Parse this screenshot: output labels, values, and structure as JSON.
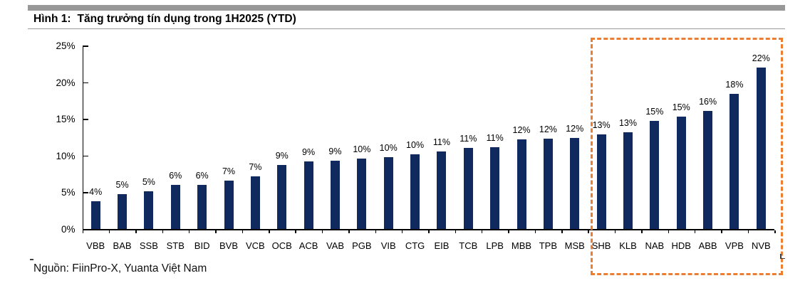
{
  "header": {
    "figure_label": "Hình 1:",
    "title": "Tăng trưởng tín dụng trong 1H2025 (YTD)"
  },
  "source_note": "Nguồn: FiinPro-X, Yuanta Việt Nam",
  "colors": {
    "bar": "#102A5F",
    "highlight": "#ED7D31",
    "header_bar": "#989898",
    "axis": "#000000"
  },
  "chart_data": {
    "type": "bar",
    "title": "Tăng trưởng tín dụng trong 1H2025 (YTD)",
    "xlabel": "",
    "ylabel": "",
    "ylim": [
      0,
      25
    ],
    "ytick_labels": [
      "0%",
      "5%",
      "10%",
      "15%",
      "20%",
      "25%"
    ],
    "grid": false,
    "legend": false,
    "categories": [
      "VBB",
      "BAB",
      "SSB",
      "STB",
      "BID",
      "BVB",
      "VCB",
      "OCB",
      "ACB",
      "VAB",
      "PGB",
      "VIB",
      "CTG",
      "EIB",
      "TCB",
      "LPB",
      "MBB",
      "TPB",
      "MSB",
      "SHB",
      "KLB",
      "NAB",
      "HDB",
      "ABB",
      "VPB",
      "NVB"
    ],
    "values": [
      3.8,
      4.7,
      5.1,
      6.0,
      6.0,
      6.6,
      7.2,
      8.7,
      9.2,
      9.3,
      9.6,
      9.8,
      10.2,
      10.6,
      11.0,
      11.1,
      12.2,
      12.3,
      12.4,
      12.9,
      13.2,
      14.7,
      15.3,
      16.1,
      18.4,
      22.0
    ],
    "labels": [
      "4%",
      "5%",
      "5%",
      "6%",
      "6%",
      "7%",
      "7%",
      "9%",
      "9%",
      "9%",
      "10%",
      "10%",
      "10%",
      "11%",
      "11%",
      "11%",
      "12%",
      "12%",
      "12%",
      "13%",
      "13%",
      "15%",
      "15%",
      "16%",
      "18%",
      "22%"
    ],
    "highlight": {
      "categories": [
        "SHB",
        "KLB",
        "NAB",
        "HDB",
        "ABB",
        "VPB",
        "NVB"
      ],
      "style": "dashed-box",
      "color": "#ED7D31"
    }
  }
}
